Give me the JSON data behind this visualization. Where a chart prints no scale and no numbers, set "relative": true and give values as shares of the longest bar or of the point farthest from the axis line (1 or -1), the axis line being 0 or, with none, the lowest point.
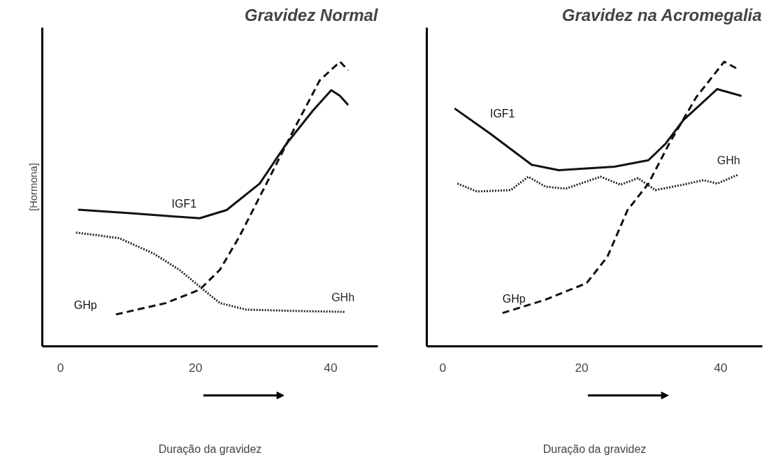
{
  "chart_data": [
    {
      "type": "line",
      "title": "Gravidez Normal",
      "xlabel": "Duração da gravidez",
      "ylabel": "[Hormona]",
      "relative": true,
      "xlim": [
        -2.7,
        47
      ],
      "xticks": [
        0,
        20,
        40
      ],
      "tick_labels": "x",
      "grid": false,
      "series": [
        {
          "name": "IGF1",
          "color": "#111111",
          "line_style": "solid",
          "x": [
            2.6,
            10.7,
            20.6,
            24.6,
            29.5,
            33.5,
            37.4,
            40.1,
            41.4,
            42.6
          ],
          "values": [
            0.48,
            0.467,
            0.45,
            0.479,
            0.572,
            0.713,
            0.829,
            0.9,
            0.88,
            0.848
          ]
        },
        {
          "name": "GHh",
          "color": "#222222",
          "line_style": "dotted",
          "x": [
            2.3,
            8.7,
            13.7,
            17.6,
            20.6,
            23.6,
            27.5,
            35.4,
            42.2
          ],
          "values": [
            0.4,
            0.38,
            0.327,
            0.269,
            0.21,
            0.152,
            0.129,
            0.124,
            0.121
          ]
        },
        {
          "name": "GHp",
          "color": "#111111",
          "line_style": "dashed",
          "x": [
            8.2,
            15.6,
            20.6,
            23.6,
            26.5,
            30.5,
            34.5,
            38.4,
            41.4,
            42.6
          ],
          "values": [
            0.112,
            0.152,
            0.199,
            0.269,
            0.386,
            0.572,
            0.759,
            0.935,
            1.0,
            0.97
          ]
        }
      ]
    },
    {
      "type": "line",
      "title": "Gravidez na Acromegalia",
      "xlabel": "Duração da gravidez",
      "relative": true,
      "xlim": [
        -2.3,
        46
      ],
      "xticks": [
        0,
        20,
        40
      ],
      "tick_labels": "x",
      "grid": false,
      "series": [
        {
          "name": "IGF1",
          "color": "#111111",
          "line_style": "solid",
          "x": [
            1.7,
            6.8,
            12.8,
            16.7,
            24.7,
            29.6,
            32.1,
            34.6,
            39.5,
            43.0
          ],
          "values": [
            0.836,
            0.748,
            0.638,
            0.619,
            0.631,
            0.654,
            0.713,
            0.794,
            0.904,
            0.88
          ]
        },
        {
          "name": "GHh",
          "color": "#222222",
          "line_style": "dotted",
          "x": [
            2.1,
            4.9,
            9.8,
            12.3,
            14.8,
            17.7,
            22.7,
            25.6,
            28.1,
            30.6,
            34.6,
            37.5,
            39.5,
            42.5
          ],
          "values": [
            0.572,
            0.544,
            0.549,
            0.596,
            0.561,
            0.554,
            0.596,
            0.568,
            0.591,
            0.549,
            0.568,
            0.584,
            0.572,
            0.603
          ]
        },
        {
          "name": "GHp",
          "color": "#111111",
          "line_style": "dashed",
          "x": [
            8.6,
            14.8,
            20.7,
            23.7,
            26.6,
            29.6,
            32.6,
            36.5,
            40.5,
            42.5
          ],
          "values": [
            0.117,
            0.164,
            0.222,
            0.315,
            0.479,
            0.572,
            0.713,
            0.876,
            1.0,
            0.974
          ]
        }
      ]
    }
  ]
}
